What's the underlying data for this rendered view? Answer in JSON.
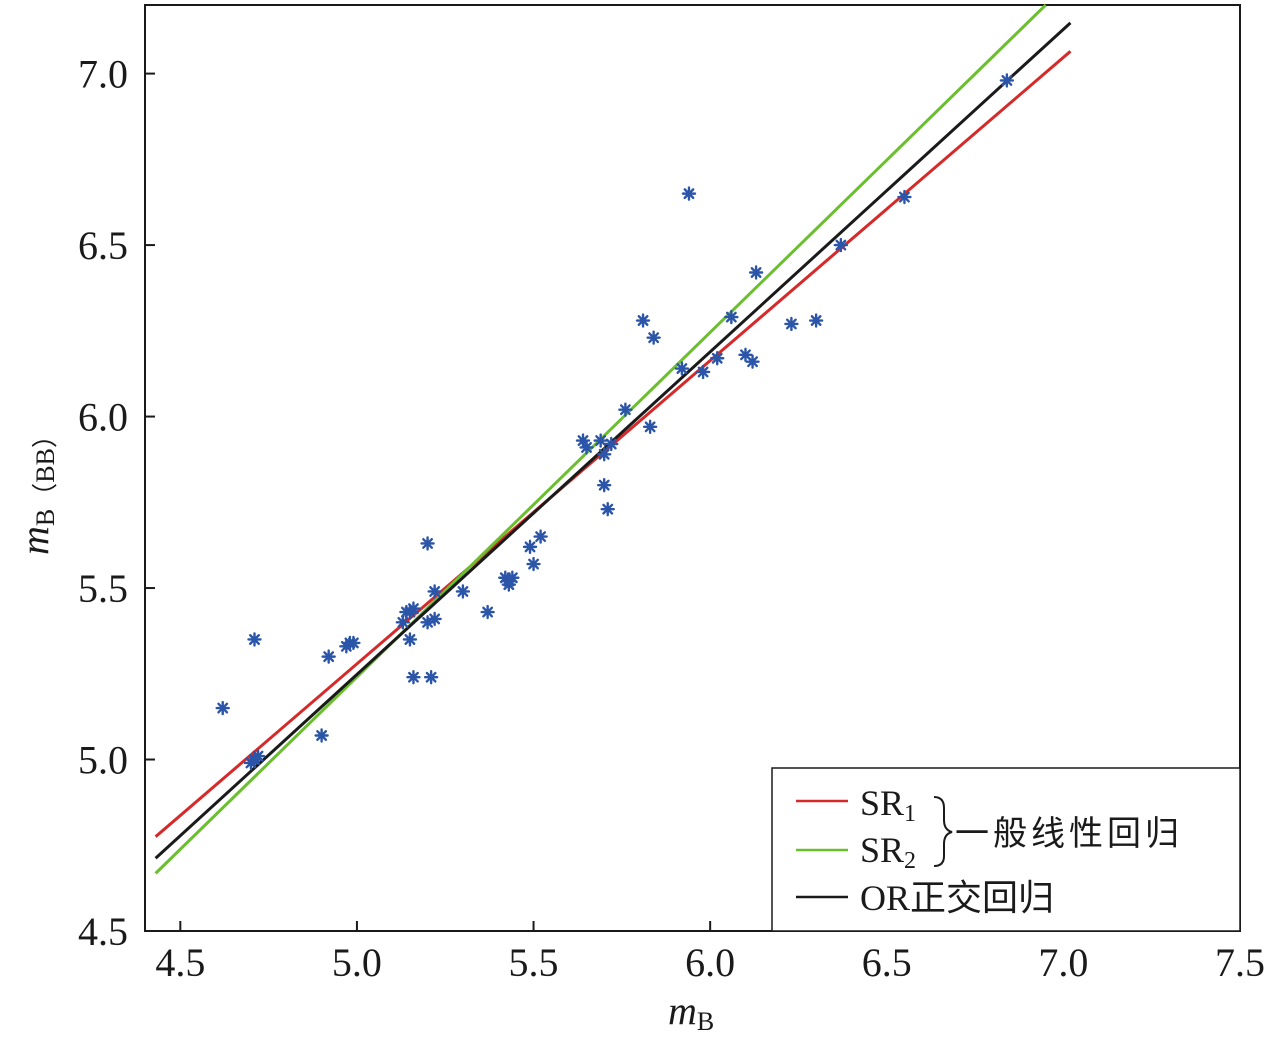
{
  "chart_data": {
    "type": "scatter",
    "xlabel": "m",
    "xlabel_sub": "B",
    "ylabel": "m",
    "ylabel_sub": "B（BB）",
    "xlim": [
      4.4,
      7.5
    ],
    "ylim": [
      4.5,
      7.2
    ],
    "xticks": [
      "4.5",
      "5.0",
      "5.5",
      "6.0",
      "6.5",
      "7.0",
      "7.5"
    ],
    "yticks": [
      "4.5",
      "5.0",
      "5.5",
      "6.0",
      "6.5",
      "7.0"
    ],
    "grid": false,
    "legend_position": "bottom-right",
    "points": {
      "color": "#2b55a8",
      "x": [
        4.62,
        4.7,
        4.71,
        4.72,
        4.71,
        4.9,
        4.92,
        4.97,
        4.98,
        4.99,
        5.13,
        5.14,
        5.15,
        5.16,
        5.15,
        5.16,
        5.2,
        5.2,
        5.21,
        5.22,
        5.22,
        5.3,
        5.37,
        5.42,
        5.43,
        5.44,
        5.43,
        5.49,
        5.5,
        5.52,
        5.64,
        5.65,
        5.69,
        5.7,
        5.7,
        5.71,
        5.72,
        5.76,
        5.81,
        5.83,
        5.84,
        5.92,
        5.94,
        5.98,
        6.02,
        6.06,
        6.1,
        6.12,
        6.13,
        6.23,
        6.3,
        6.37,
        6.55,
        6.84
      ],
      "y": [
        5.15,
        4.99,
        5.35,
        5.01,
        5.0,
        5.07,
        5.3,
        5.33,
        5.34,
        5.34,
        5.4,
        5.43,
        5.35,
        5.24,
        5.43,
        5.44,
        5.4,
        5.63,
        5.24,
        5.41,
        5.49,
        5.49,
        5.43,
        5.53,
        5.51,
        5.53,
        5.52,
        5.62,
        5.57,
        5.65,
        5.93,
        5.91,
        5.93,
        5.8,
        5.89,
        5.73,
        5.92,
        6.02,
        6.28,
        5.97,
        6.23,
        6.14,
        6.65,
        6.13,
        6.17,
        6.29,
        6.18,
        6.16,
        6.42,
        6.27,
        6.28,
        6.5,
        6.64,
        6.98
      ]
    },
    "series": [
      {
        "name": "SR",
        "name_sub": "1",
        "color": "#d62a2a",
        "line_x": [
          4.43,
          7.02
        ],
        "line_y": [
          4.775,
          7.065
        ]
      },
      {
        "name": "SR",
        "name_sub": "2",
        "color": "#6bbf2f",
        "line_x": [
          4.43,
          6.95
        ],
        "line_y": [
          4.668,
          7.2
        ]
      },
      {
        "name": "OR正交回归",
        "name_sub": "",
        "color": "#1a1a1a",
        "line_x": [
          4.43,
          7.02
        ],
        "line_y": [
          4.712,
          7.148
        ]
      }
    ],
    "legend_group_label": "一般线性回归"
  }
}
